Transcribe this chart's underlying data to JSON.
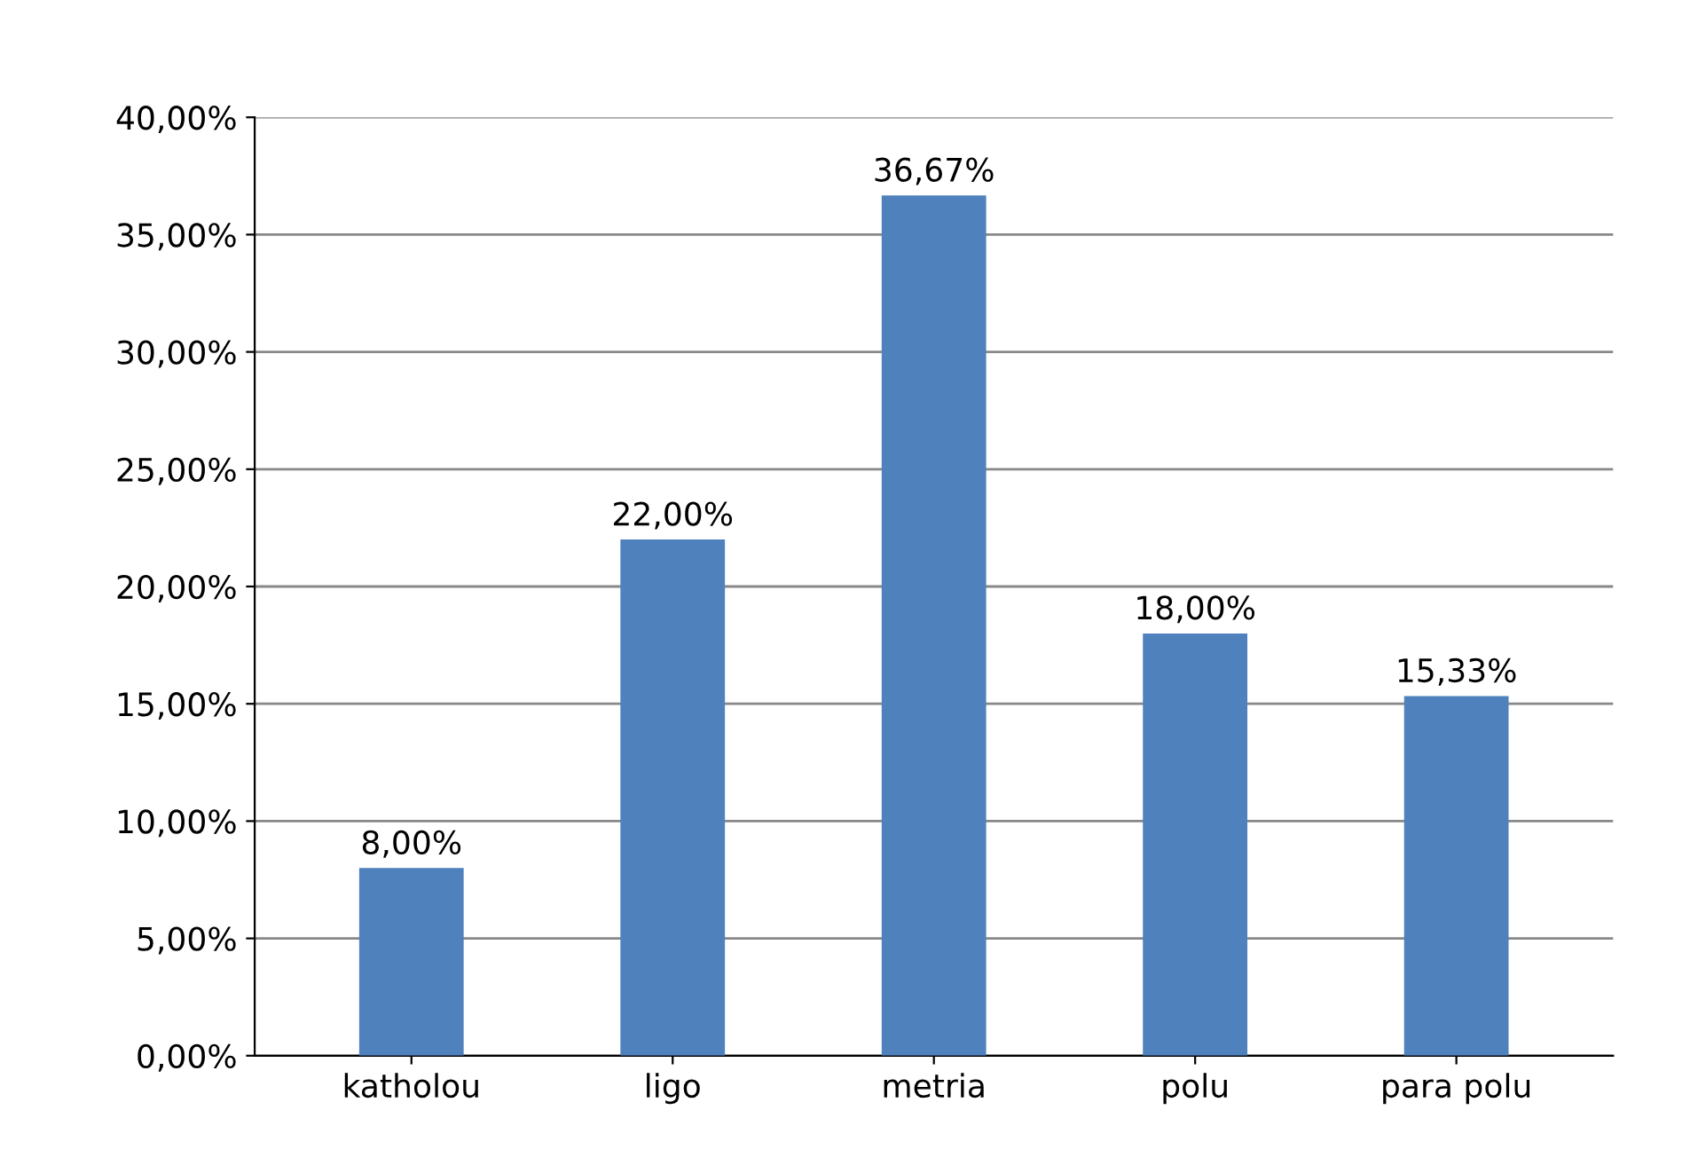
{
  "chart_data": {
    "type": "bar",
    "categories": [
      "katholou",
      "ligo",
      "metria",
      "polu",
      "para polu"
    ],
    "values": [
      8.0,
      22.0,
      36.67,
      18.0,
      15.33
    ],
    "value_labels": [
      "8,00%",
      "22,00%",
      "36,67%",
      "18,00%",
      "15,33%"
    ],
    "color": "#4f81bd",
    "ylim": [
      0,
      40
    ],
    "yticks": [
      {
        "value": 0,
        "label": "0,00%"
      },
      {
        "value": 5,
        "label": "5,00%"
      },
      {
        "value": 10,
        "label": "10,00%"
      },
      {
        "value": 15,
        "label": "15,00%"
      },
      {
        "value": 20,
        "label": "20,00%"
      },
      {
        "value": 25,
        "label": "25,00%"
      },
      {
        "value": 30,
        "label": "30,00%"
      },
      {
        "value": 35,
        "label": "35,00%"
      },
      {
        "value": 40,
        "label": "40,00%"
      }
    ],
    "grid": "y"
  }
}
